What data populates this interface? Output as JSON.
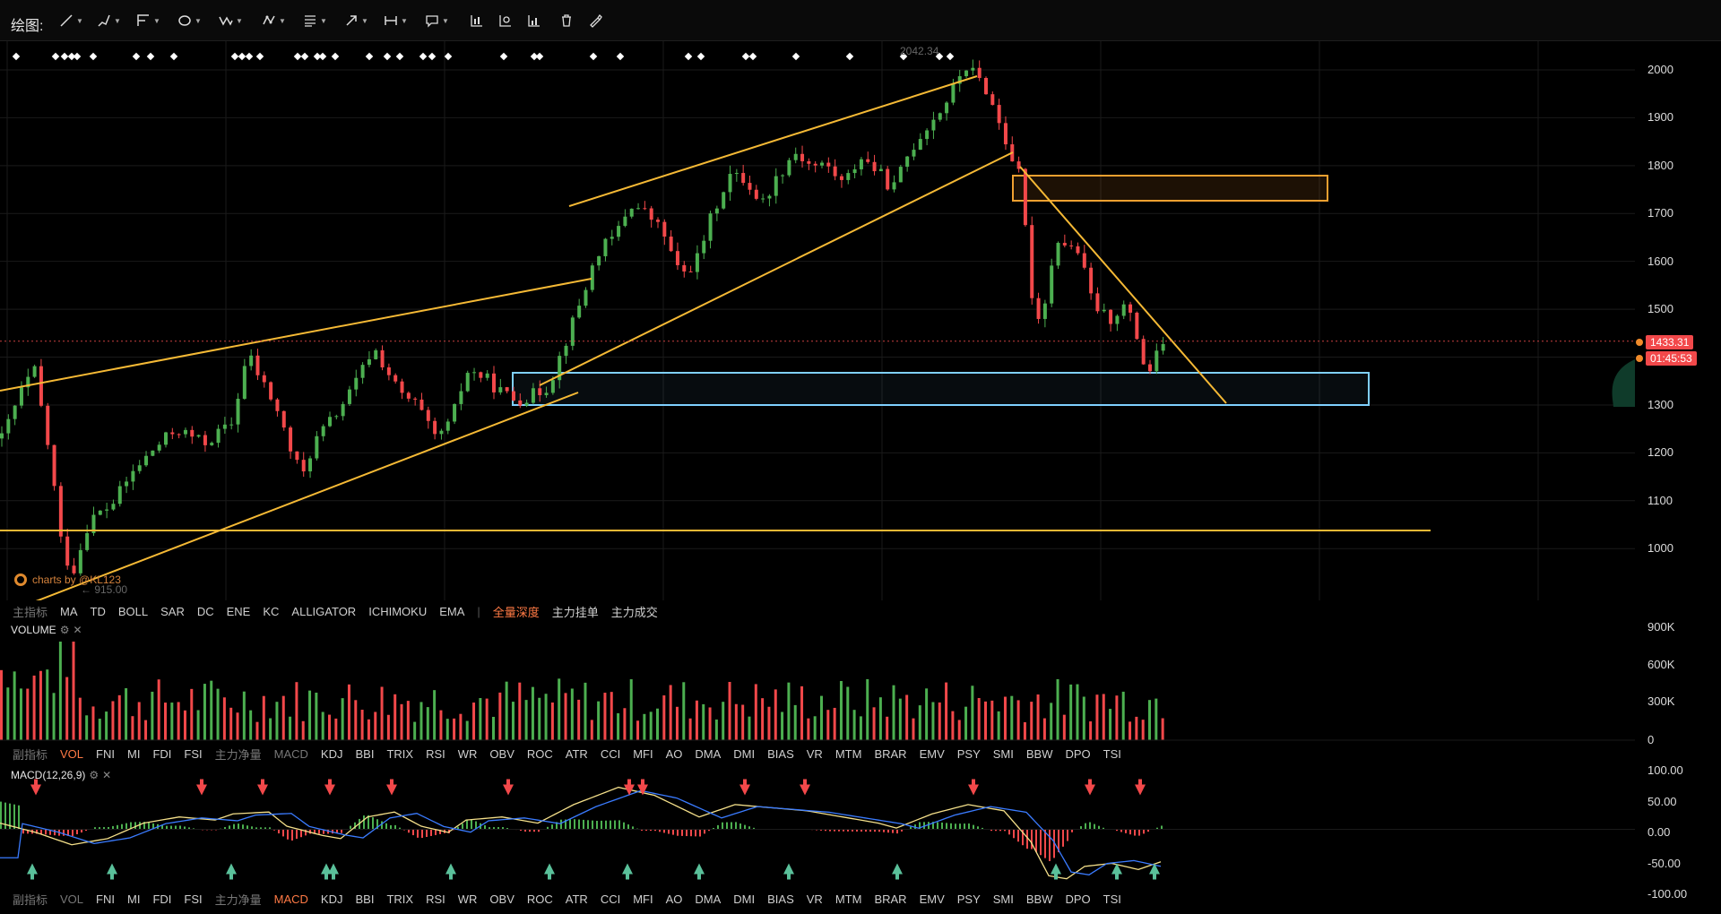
{
  "toolbar": {
    "label": "绘图:",
    "tools": [
      "trendline-icon",
      "pen-icon",
      "fib-icon",
      "circle-icon",
      "zigzag-icon",
      "pattern-icon",
      "list-icon",
      "arrow-icon",
      "range-icon",
      "comment-icon",
      "candles-icon",
      "reset-icon",
      "bars-icon",
      "trash-icon",
      "brush-icon"
    ]
  },
  "price_axis": {
    "ticks": [
      "2000",
      "1900",
      "1800",
      "1700",
      "1600",
      "1500",
      "1400",
      "1300",
      "1200",
      "1100",
      "1000"
    ],
    "current_price": "1433.31",
    "countdown": "01:45:53",
    "high_label": "2042.34",
    "low_label": "915.00"
  },
  "watermark": "charts by @KL123",
  "main_indicators": {
    "label": "主指标",
    "items": [
      "MA",
      "TD",
      "BOLL",
      "SAR",
      "DC",
      "ENE",
      "KC",
      "ALLIGATOR",
      "ICHIMOKU",
      "EMA"
    ],
    "extras": [
      "全量深度",
      "主力挂单",
      "主力成交"
    ]
  },
  "volume_pane": {
    "title": "VOLUME",
    "ticks": [
      "900K",
      "600K",
      "300K",
      "0"
    ]
  },
  "sub_indicators_1": {
    "label": "副指标",
    "items": [
      "VOL",
      "FNI",
      "MI",
      "FDI",
      "FSI",
      "主力净量",
      "MACD",
      "KDJ",
      "BBI",
      "TRIX",
      "RSI",
      "WR",
      "OBV",
      "ROC",
      "ATR",
      "CCI",
      "MFI",
      "AO",
      "DMA",
      "DMI",
      "BIAS",
      "VR",
      "MTM",
      "BRAR",
      "EMV",
      "PSY",
      "SMI",
      "BBW",
      "DPO",
      "TSI"
    ],
    "active": "VOL"
  },
  "macd_pane": {
    "title": "MACD(12,26,9)",
    "ticks": [
      "100.00",
      "50.00",
      "0.00",
      "-50.00",
      "-100.00"
    ]
  },
  "sub_indicators_2": {
    "label": "副指标",
    "items": [
      "VOL",
      "FNI",
      "MI",
      "FDI",
      "FSI",
      "主力净量",
      "MACD",
      "KDJ",
      "BBI",
      "TRIX",
      "RSI",
      "WR",
      "OBV",
      "ROC",
      "ATR",
      "CCI",
      "MFI",
      "AO",
      "DMA",
      "DMI",
      "BIAS",
      "VR",
      "MTM",
      "BRAR",
      "EMV",
      "PSY",
      "SMI",
      "BBW",
      "DPO",
      "TSI"
    ],
    "active": "MACD"
  },
  "colors": {
    "up": "#4caf50",
    "down": "#f2484a",
    "trendline": "#f5b935",
    "support_zone": "#7fd0ff",
    "resistance_zone": "#f0a030",
    "macd_line": "#f5e08a",
    "signal_line": "#3a7bff"
  },
  "chart_data": {
    "type": "candlestick",
    "price_range": [
      915,
      2042.34
    ],
    "current_price": 1433.31,
    "path": [
      [
        0,
        1230
      ],
      [
        20,
        1340
      ],
      [
        30,
        1370
      ],
      [
        45,
        1180
      ],
      [
        55,
        1000
      ],
      [
        65,
        950
      ],
      [
        80,
        1060
      ],
      [
        100,
        1090
      ],
      [
        120,
        1160
      ],
      [
        140,
        1210
      ],
      [
        160,
        1250
      ],
      [
        185,
        1220
      ],
      [
        210,
        1260
      ],
      [
        225,
        1410
      ],
      [
        235,
        1360
      ],
      [
        250,
        1300
      ],
      [
        265,
        1200
      ],
      [
        275,
        1150
      ],
      [
        285,
        1220
      ],
      [
        305,
        1280
      ],
      [
        320,
        1330
      ],
      [
        340,
        1420
      ],
      [
        350,
        1380
      ],
      [
        365,
        1320
      ],
      [
        380,
        1300
      ],
      [
        395,
        1230
      ],
      [
        410,
        1260
      ],
      [
        425,
        1370
      ],
      [
        440,
        1360
      ],
      [
        455,
        1330
      ],
      [
        470,
        1310
      ],
      [
        485,
        1320
      ],
      [
        500,
        1340
      ],
      [
        515,
        1430
      ],
      [
        530,
        1520
      ],
      [
        545,
        1620
      ],
      [
        560,
        1650
      ],
      [
        575,
        1720
      ],
      [
        590,
        1700
      ],
      [
        605,
        1660
      ],
      [
        620,
        1570
      ],
      [
        635,
        1600
      ],
      [
        650,
        1700
      ],
      [
        665,
        1780
      ],
      [
        680,
        1770
      ],
      [
        695,
        1720
      ],
      [
        710,
        1780
      ],
      [
        725,
        1830
      ],
      [
        740,
        1800
      ],
      [
        755,
        1800
      ],
      [
        770,
        1760
      ],
      [
        785,
        1820
      ],
      [
        800,
        1790
      ],
      [
        815,
        1750
      ],
      [
        830,
        1830
      ],
      [
        845,
        1880
      ],
      [
        860,
        1920
      ],
      [
        870,
        1960
      ],
      [
        880,
        2010
      ],
      [
        890,
        1990
      ],
      [
        900,
        1960
      ],
      [
        912,
        1890
      ],
      [
        920,
        1840
      ],
      [
        930,
        1780
      ],
      [
        938,
        1630
      ],
      [
        945,
        1460
      ],
      [
        955,
        1530
      ],
      [
        965,
        1650
      ],
      [
        975,
        1630
      ],
      [
        985,
        1620
      ],
      [
        995,
        1530
      ],
      [
        1005,
        1490
      ],
      [
        1015,
        1480
      ],
      [
        1025,
        1510
      ],
      [
        1035,
        1470
      ],
      [
        1045,
        1380
      ],
      [
        1052,
        1370
      ],
      [
        1060,
        1433
      ]
    ],
    "volume_range": [
      0,
      900000
    ],
    "macd_range": [
      -100,
      100
    ]
  }
}
